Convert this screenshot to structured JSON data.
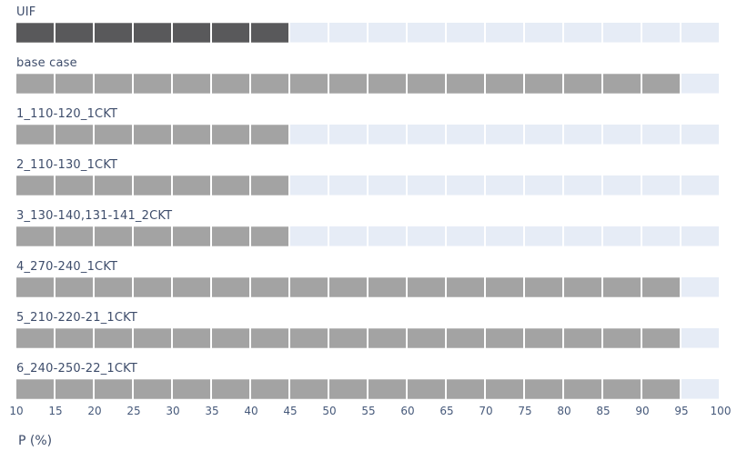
{
  "chart_data": {
    "type": "bar",
    "orientation": "horizontal",
    "title": "",
    "categories": [
      "UIF",
      "base case",
      "1_110-120_1CKT",
      "2_110-130_1CKT",
      "3_130-140,131-141_2CKT",
      "4_270-240_1CKT",
      "5_210-220-21_1CKT",
      "6_240-250-22_1CKT"
    ],
    "values": [
      45,
      95,
      45,
      45,
      45,
      95,
      95,
      95
    ],
    "bar_colors": [
      "#59595b",
      "#a3a3a3",
      "#a3a3a3",
      "#a3a3a3",
      "#a3a3a3",
      "#a3a3a3",
      "#a3a3a3",
      "#a3a3a3"
    ],
    "xlabel": "P (%)",
    "ylabel": "",
    "xlim": [
      10,
      100
    ],
    "xticks": [
      10,
      15,
      20,
      25,
      30,
      35,
      40,
      45,
      50,
      55,
      60,
      65,
      70,
      75,
      80,
      85,
      90,
      95,
      100
    ],
    "segment_step": 5,
    "grid": false,
    "legend": false
  },
  "colors": {
    "track": "#e6ecf6",
    "dark_bar": "#59595b",
    "gray_bar": "#a3a3a3",
    "label_text": "#3e4d6b",
    "tick_text": "#46597a",
    "background": "#ffffff"
  }
}
